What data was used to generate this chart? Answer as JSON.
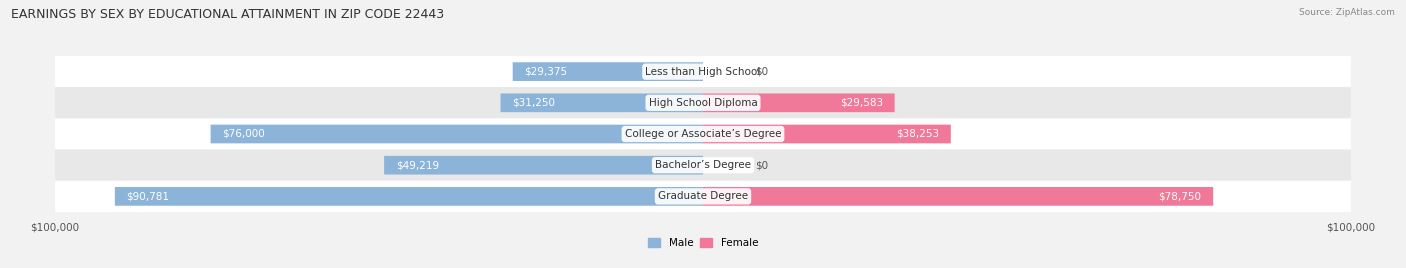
{
  "title": "EARNINGS BY SEX BY EDUCATIONAL ATTAINMENT IN ZIP CODE 22443",
  "source": "Source: ZipAtlas.com",
  "categories": [
    "Less than High School",
    "High School Diploma",
    "College or Associate’s Degree",
    "Bachelor’s Degree",
    "Graduate Degree"
  ],
  "male_values": [
    29375,
    31250,
    76000,
    49219,
    90781
  ],
  "female_values": [
    0,
    29583,
    38253,
    0,
    78750
  ],
  "max_value": 100000,
  "male_color": "#8cb4d8",
  "female_color": "#f07898",
  "male_label": "Male",
  "female_label": "Female",
  "bg_color": "#f2f2f2",
  "row_colors": [
    "#ffffff",
    "#e8e8e8",
    "#ffffff",
    "#e8e8e8",
    "#ffffff"
  ],
  "title_fontsize": 9,
  "label_fontsize": 7.5,
  "value_fontsize": 7.5,
  "tick_fontsize": 7.5,
  "value_threshold": 12000
}
